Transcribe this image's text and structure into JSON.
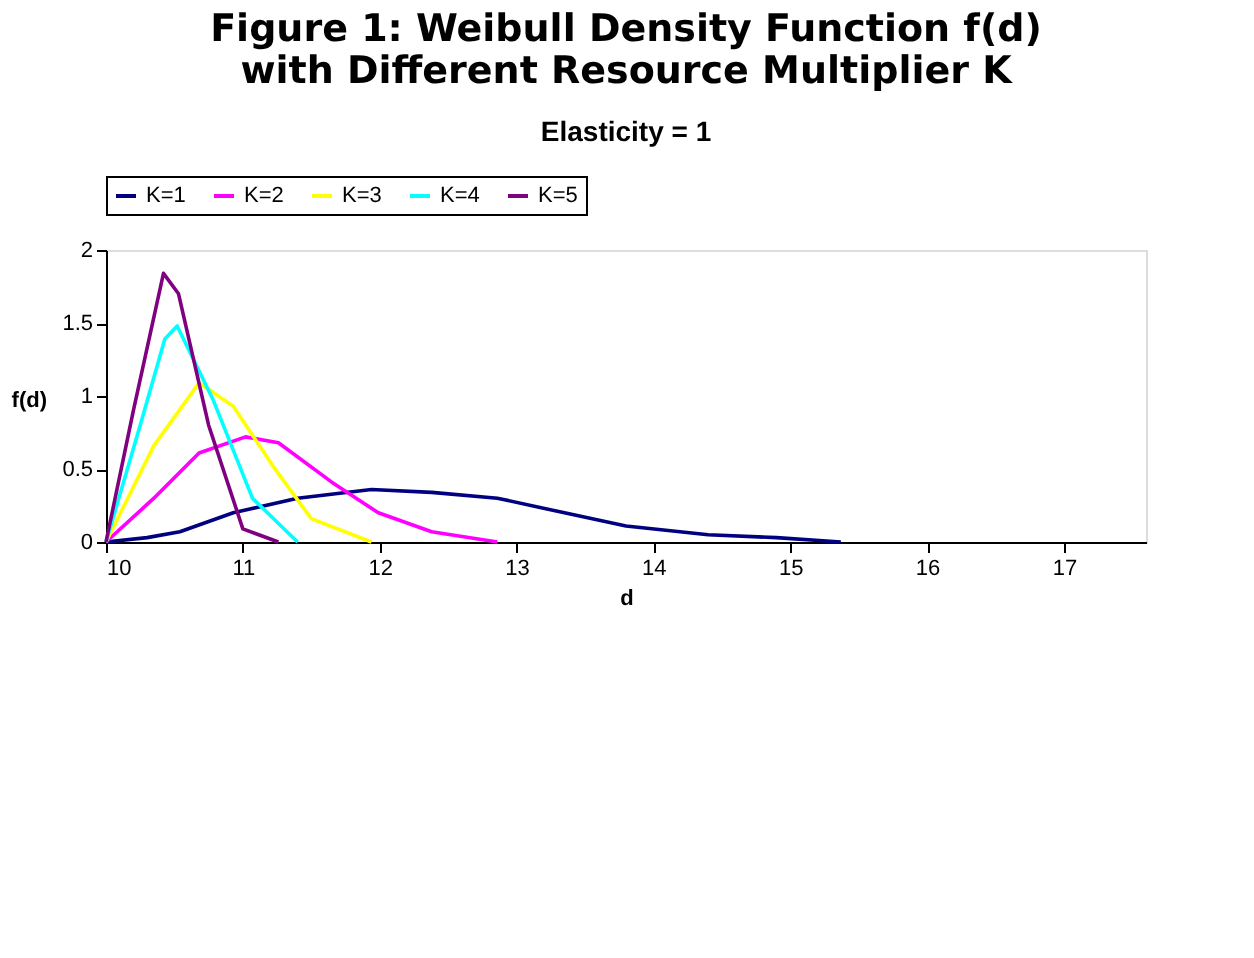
{
  "chart_data": {
    "type": "line",
    "title": "Figure 1: Weibull Density Function f(d) with Different Resource Multiplier K",
    "subtitle": "Elasticity = 1",
    "xlabel": "d",
    "ylabel": "f(d)",
    "xlim": [
      10,
      17.6
    ],
    "xticks": [
      10,
      11,
      12,
      13,
      14,
      15,
      16,
      17
    ],
    "ylim": [
      0,
      2
    ],
    "yticks": [
      0,
      0.5,
      1,
      1.5,
      2
    ],
    "grid": false,
    "legend": "top",
    "marker": "none",
    "line_style": "solid",
    "series": [
      {
        "name": "K=1",
        "color": "#000080",
        "x": [
          10.0,
          10.3,
          10.54,
          10.93,
          11.4,
          11.94,
          12.38,
          12.86,
          13.35,
          13.8,
          14.4,
          14.9,
          15.37
        ],
        "values": [
          0,
          0.03,
          0.07,
          0.2,
          0.3,
          0.36,
          0.34,
          0.3,
          0.2,
          0.11,
          0.05,
          0.03,
          0
        ]
      },
      {
        "name": "K=2",
        "color": "#ff00ff",
        "x": [
          10.0,
          10.35,
          10.68,
          11.02,
          11.26,
          11.65,
          11.99,
          12.38,
          12.86
        ],
        "values": [
          0,
          0.3,
          0.61,
          0.72,
          0.68,
          0.41,
          0.2,
          0.07,
          0
        ]
      },
      {
        "name": "K=3",
        "color": "#ffff00",
        "x": [
          10.0,
          10.35,
          10.68,
          10.93,
          11.22,
          11.5,
          11.94
        ],
        "values": [
          0,
          0.66,
          1.09,
          0.93,
          0.52,
          0.16,
          0
        ]
      },
      {
        "name": "K=4",
        "color": "#00ffff",
        "x": [
          10.0,
          10.25,
          10.43,
          10.52,
          10.78,
          11.07,
          11.4
        ],
        "values": [
          0,
          0.8,
          1.39,
          1.48,
          0.98,
          0.3,
          0
        ]
      },
      {
        "name": "K=5",
        "color": "#800080",
        "x": [
          10.0,
          10.2,
          10.42,
          10.53,
          10.75,
          11.0,
          11.26
        ],
        "values": [
          0,
          0.9,
          1.84,
          1.7,
          0.8,
          0.09,
          0
        ]
      }
    ]
  }
}
